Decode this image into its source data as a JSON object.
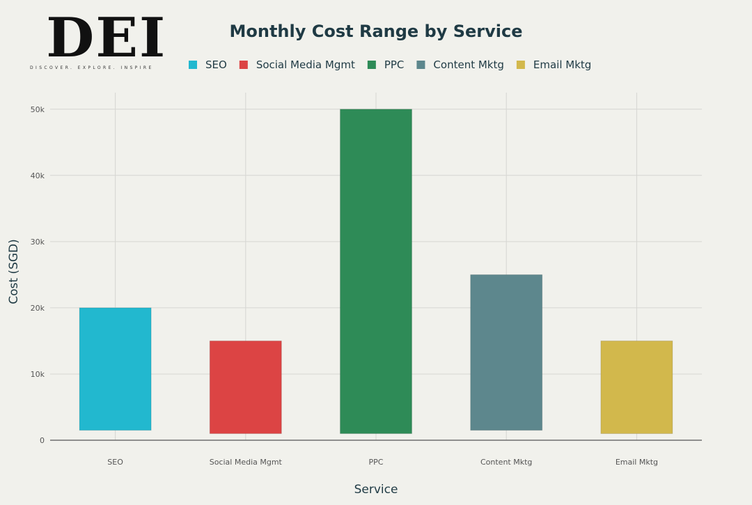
{
  "logo": {
    "mark": "DEI",
    "tagline": "DISCOVER. EXPLORE. INSPIRE"
  },
  "colors": {
    "background": "#f1f1ec",
    "grid": "#d6d6d2",
    "axis": "#555555",
    "text": "#1f3a44"
  },
  "chart_data": {
    "type": "bar",
    "title": "Monthly Cost Range by Service",
    "xlabel": "Service",
    "ylabel": "Cost (SGD)",
    "ylim": [
      0,
      52500
    ],
    "yticks": [
      0,
      10000,
      20000,
      30000,
      40000,
      50000
    ],
    "ytick_labels": [
      "0",
      "10k",
      "20k",
      "30k",
      "40k",
      "50k"
    ],
    "grid": true,
    "legend_position": "top",
    "categories": [
      "SEO",
      "Social Media Mgmt",
      "PPC",
      "Content Mktg",
      "Email Mktg"
    ],
    "series": [
      {
        "name": "SEO",
        "color": "#22b8cf",
        "low": 1500,
        "high": 20000
      },
      {
        "name": "Social Media Mgmt",
        "color": "#dc4444",
        "low": 1000,
        "high": 15000
      },
      {
        "name": "PPC",
        "color": "#2e8b57",
        "low": 1000,
        "high": 50000
      },
      {
        "name": "Content Mktg",
        "color": "#5d878d",
        "low": 1500,
        "high": 25000
      },
      {
        "name": "Email Mktg",
        "color": "#d2b84c",
        "low": 1000,
        "high": 15000
      }
    ]
  }
}
